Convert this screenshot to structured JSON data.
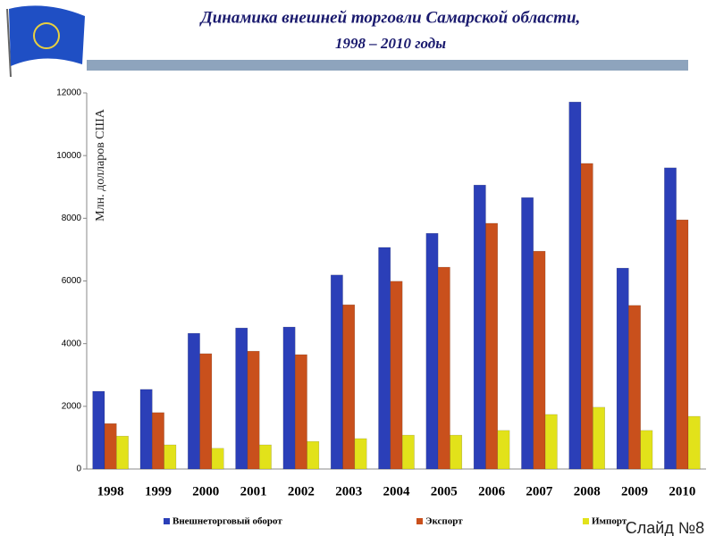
{
  "chart_data": {
    "type": "bar",
    "title": "Динамика внешней торговли Самарской области,",
    "subtitle": "1998 – 2010 годы",
    "y_label": "Млн. долларов США",
    "footer": "Слайд №8",
    "categories": [
      "1998",
      "1999",
      "2000",
      "2001",
      "2002",
      "2003",
      "2004",
      "2005",
      "2006",
      "2007",
      "2008",
      "2009",
      "2010"
    ],
    "series": [
      {
        "name": "Внешнеторговый оборот",
        "color": "#2b3fb8",
        "values": [
          2480,
          2540,
          4330,
          4500,
          4530,
          6190,
          7070,
          7520,
          9060,
          8660,
          11710,
          6410,
          9610
        ]
      },
      {
        "name": "Экспорт",
        "color": "#c9501c",
        "values": [
          1450,
          1800,
          3680,
          3760,
          3650,
          5240,
          5990,
          6440,
          7840,
          6950,
          9750,
          5220,
          7950
        ]
      },
      {
        "name": "Импорт",
        "color": "#e2e21a",
        "values": [
          1050,
          770,
          660,
          770,
          880,
          970,
          1080,
          1080,
          1230,
          1740,
          1970,
          1230,
          1680
        ]
      }
    ],
    "ylim": [
      0,
      12000
    ],
    "yticks": [
      0,
      2000,
      4000,
      6000,
      8000,
      10000,
      12000
    ]
  }
}
